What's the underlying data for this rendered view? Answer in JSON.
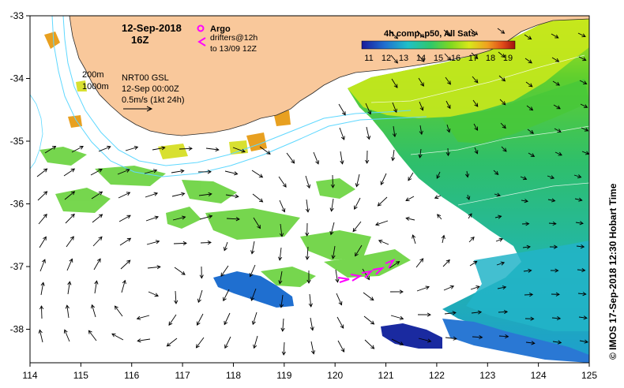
{
  "header": {
    "date": "12-Sep-2018",
    "hour": "16Z",
    "argo_label": "Argo",
    "drifters_line1": "drifters@12h",
    "drifters_line2": "to 13/09 12Z",
    "depth_200": "200m",
    "depth_1000": "1000m",
    "gsl_line1": "NRT00 GSL",
    "gsl_line2": "12-Sep 00:00Z",
    "speed_line": "0.5m/s (1kt 24h)"
  },
  "colorbar": {
    "title": "4h comp, p50, All Sats",
    "ticks": [
      "11",
      "12",
      "13",
      "14",
      "15",
      "16",
      "17",
      "18",
      "19"
    ]
  },
  "axes": {
    "x_ticks": [
      "114",
      "115",
      "116",
      "117",
      "118",
      "119",
      "120",
      "121",
      "122",
      "123",
      "124",
      "125"
    ],
    "y_ticks": [
      "-33",
      "-34",
      "-35",
      "-36",
      "-37",
      "-38"
    ]
  },
  "credit": "© IMOS 17-Sep-2018 12:30 Hobart Time",
  "colors": {
    "land": "#f9c89b",
    "argo": "#ff00ff",
    "drifter": "#ff00ff",
    "contour": "#5fd8ff"
  }
}
